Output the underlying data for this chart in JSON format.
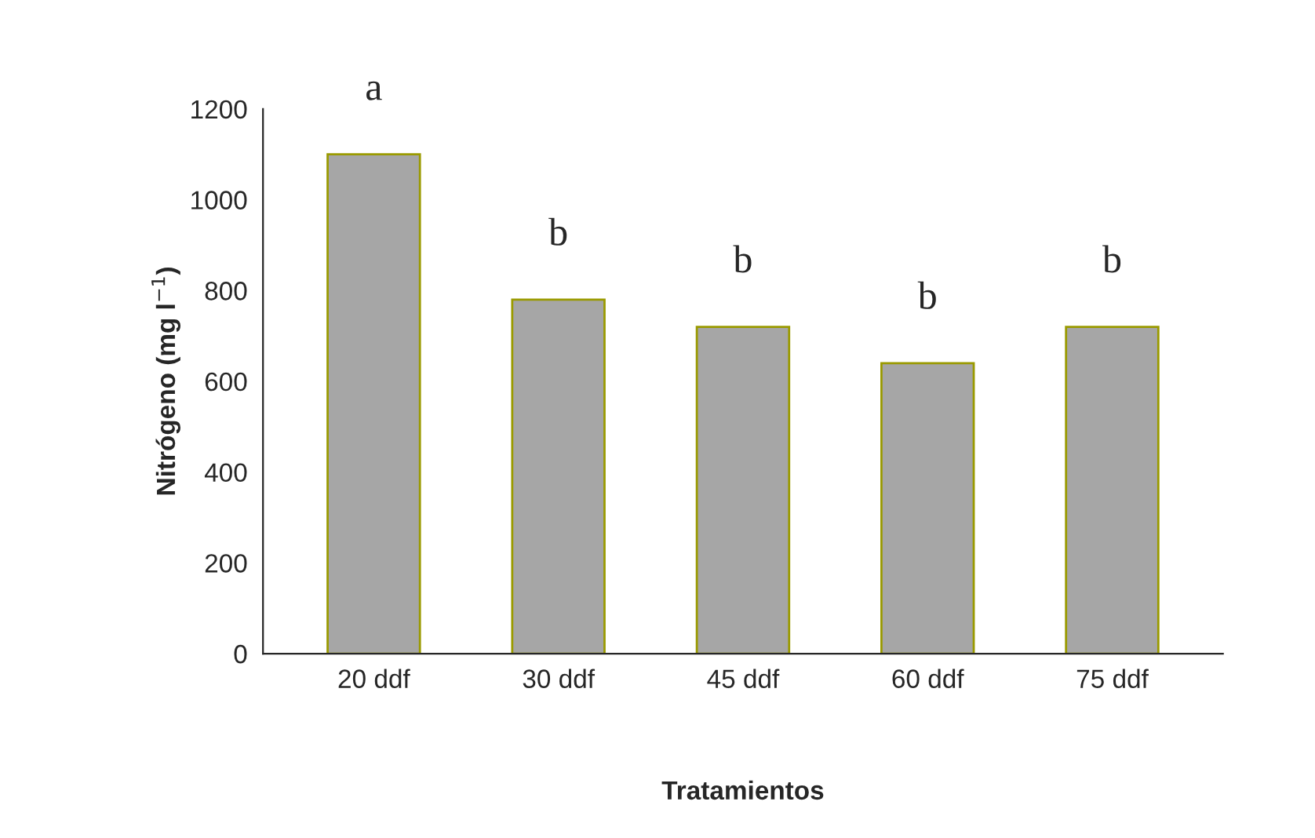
{
  "chart_data": {
    "type": "bar",
    "xlabel": "Tratamientos",
    "ylabel": "Nitrógeno (mg l$^{−1}$)",
    "categories": [
      "20 ddf",
      "30 ddf",
      "45 ddf",
      "60 ddf",
      "75 ddf"
    ],
    "values": [
      1100,
      780,
      720,
      640,
      720
    ],
    "color": "#a6a6a6",
    "ylim": [
      0,
      1200
    ],
    "yticks": [
      0,
      200,
      400,
      600,
      800,
      1000,
      1200
    ],
    "annotations": [
      "a",
      "b",
      "b",
      "b",
      "b"
    ]
  }
}
